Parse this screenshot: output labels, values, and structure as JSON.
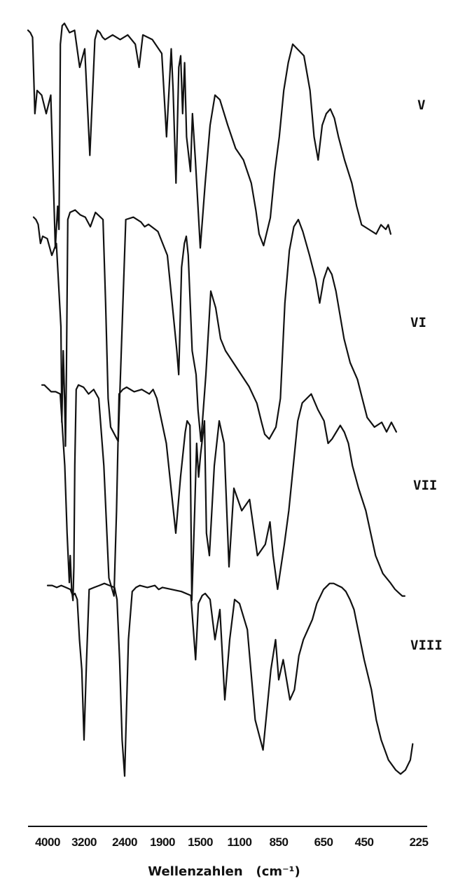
{
  "chart_data": {
    "type": "line",
    "title": "",
    "xlabel": "Wellenzahlen   (cm⁻¹)",
    "ylabel": "",
    "x_axis": {
      "unit": "cm-1",
      "reversed": true,
      "scale": "piecewise (scale changes at 2400 and 1900 cm-1)",
      "ticks": [
        4000,
        3200,
        2400,
        1900,
        1500,
        1100,
        850,
        650,
        450,
        225
      ],
      "tick_labels": [
        "4000",
        "3200",
        "2400",
        "1900",
        "1500",
        "1100",
        "850",
        "650",
        "450",
        "225"
      ]
    },
    "y_axis": {
      "shown": false,
      "note": "transmittance, curves vertically offset"
    },
    "grid": false,
    "legend": "none",
    "series": [
      {
        "name": "V",
        "x": [
          4000,
          3950,
          3900,
          3850,
          3800,
          3700,
          3600,
          3500,
          3400,
          3350,
          3320,
          3300,
          3290,
          3250,
          3200,
          3100,
          3000,
          2900,
          2800,
          2700,
          2600,
          2550,
          2500,
          2450,
          2400,
          2300,
          2200,
          2100,
          2000,
          1950,
          1900,
          1800,
          1700,
          1650,
          1600,
          1580,
          1550,
          1520,
          1500,
          1480,
          1460,
          1440,
          1400,
          1380,
          1350,
          1300,
          1250,
          1200,
          1150,
          1100,
          1050,
          1000,
          950,
          900,
          870,
          850,
          830,
          800,
          780,
          760,
          740,
          720,
          700,
          680,
          650,
          620,
          600,
          580,
          560,
          540,
          520,
          500,
          480,
          450,
          420,
          400,
          380,
          350,
          320,
          300,
          280,
          270,
          260
        ],
        "y": [
          96,
          95,
          93,
          60,
          70,
          68,
          60,
          68,
          2,
          20,
          10,
          55,
          90,
          98,
          99,
          95,
          96,
          80,
          88,
          42,
          92,
          96,
          95,
          93,
          92,
          94,
          92,
          94,
          90,
          80,
          94,
          92,
          86,
          50,
          88,
          70,
          30,
          80,
          85,
          60,
          82,
          50,
          35,
          60,
          40,
          2,
          30,
          55,
          68,
          66,
          55,
          45,
          40,
          30,
          18,
          8,
          3,
          15,
          35,
          50,
          70,
          82,
          90,
          88,
          85,
          70,
          50,
          40,
          55,
          60,
          62,
          58,
          50,
          40,
          30,
          20,
          12,
          10,
          8,
          12,
          10,
          12,
          8
        ]
      },
      {
        "name": "VI",
        "x": [
          4000,
          3950,
          3900,
          3850,
          3800,
          3700,
          3600,
          3500,
          3400,
          3380,
          3350,
          3320,
          3300,
          3280,
          3250,
          3200,
          3100,
          3000,
          2900,
          2800,
          2700,
          2600,
          2550,
          2500,
          2450,
          2400,
          2300,
          2200,
          2100,
          2000,
          1950,
          1900,
          1800,
          1700,
          1650,
          1600,
          1580,
          1550,
          1520,
          1500,
          1480,
          1460,
          1440,
          1400,
          1380,
          1350,
          1300,
          1250,
          1200,
          1150,
          1100,
          1050,
          1000,
          950,
          900,
          870,
          850,
          830,
          800,
          780,
          760,
          740,
          720,
          700,
          680,
          650,
          620,
          600,
          580,
          560,
          540,
          520,
          500,
          480,
          450,
          420,
          400,
          380,
          350,
          320,
          300,
          280,
          270,
          260
        ],
        "y": [
          96,
          95,
          93,
          85,
          88,
          87,
          80,
          85,
          50,
          10,
          40,
          20,
          0,
          30,
          95,
          98,
          99,
          97,
          96,
          92,
          98,
          96,
          95,
          60,
          20,
          8,
          2,
          95,
          96,
          94,
          92,
          93,
          90,
          80,
          60,
          40,
          30,
          75,
          85,
          88,
          80,
          60,
          40,
          30,
          15,
          2,
          30,
          65,
          58,
          45,
          40,
          35,
          30,
          25,
          18,
          10,
          5,
          3,
          8,
          20,
          60,
          82,
          92,
          95,
          90,
          80,
          70,
          60,
          70,
          75,
          72,
          65,
          55,
          45,
          35,
          28,
          20,
          12,
          8,
          10,
          6,
          10,
          8,
          6
        ]
      },
      {
        "name": "VII",
        "x": [
          4000,
          3950,
          3900,
          3850,
          3800,
          3700,
          3600,
          3500,
          3450,
          3400,
          3380,
          3350,
          3320,
          3300,
          3280,
          3250,
          3200,
          3100,
          3000,
          2900,
          2800,
          2700,
          2600,
          2500,
          2450,
          2400,
          2350,
          2300,
          2200,
          2100,
          2000,
          1950,
          1900,
          1800,
          1700,
          1650,
          1600,
          1580,
          1550,
          1530,
          1500,
          1480,
          1460,
          1440,
          1400,
          1380,
          1350,
          1300,
          1250,
          1200,
          1150,
          1100,
          1050,
          1000,
          950,
          900,
          870,
          850,
          830,
          800,
          780,
          760,
          740,
          720,
          700,
          680,
          650,
          620,
          600,
          580,
          560,
          540,
          520,
          500,
          480,
          450,
          420,
          400,
          380,
          350,
          320,
          300,
          280,
          270,
          260
        ],
        "y": [
          96,
          96,
          95,
          94,
          93,
          93,
          92,
          60,
          30,
          8,
          20,
          5,
          0,
          15,
          60,
          94,
          96,
          95,
          92,
          94,
          90,
          60,
          10,
          2,
          40,
          92,
          94,
          95,
          93,
          94,
          92,
          94,
          90,
          70,
          30,
          55,
          75,
          80,
          78,
          0,
          40,
          70,
          55,
          65,
          80,
          30,
          20,
          60,
          80,
          70,
          15,
          50,
          40,
          45,
          20,
          25,
          35,
          20,
          5,
          25,
          40,
          60,
          80,
          88,
          90,
          92,
          85,
          80,
          70,
          72,
          75,
          78,
          75,
          70,
          60,
          50,
          40,
          30,
          20,
          12,
          8,
          5,
          3,
          2,
          2
        ]
      },
      {
        "name": "VIII",
        "x": [
          4000,
          3900,
          3800,
          3700,
          3600,
          3500,
          3450,
          3400,
          3350,
          3300,
          3250,
          3200,
          3150,
          3100,
          3000,
          2900,
          2800,
          2700,
          2600,
          2550,
          2500,
          2450,
          2400,
          2350,
          2300,
          2250,
          2200,
          2100,
          2000,
          1950,
          1900,
          1800,
          1700,
          1600,
          1550,
          1520,
          1500,
          1480,
          1450,
          1400,
          1350,
          1300,
          1250,
          1200,
          1150,
          1100,
          1050,
          1000,
          950,
          900,
          870,
          850,
          830,
          800,
          780,
          760,
          740,
          720,
          700,
          680,
          650,
          620,
          600,
          580,
          560,
          540,
          520,
          500,
          480,
          450,
          420,
          400,
          380,
          350,
          320,
          300,
          280,
          260,
          250
        ],
        "y": [
          97,
          97,
          96,
          97,
          96,
          95,
          92,
          93,
          90,
          70,
          55,
          20,
          60,
          95,
          96,
          97,
          98,
          97,
          96,
          90,
          60,
          20,
          2,
          70,
          94,
          96,
          97,
          96,
          97,
          95,
          96,
          95,
          94,
          92,
          60,
          88,
          90,
          92,
          93,
          90,
          70,
          85,
          40,
          70,
          90,
          88,
          75,
          30,
          15,
          55,
          70,
          50,
          60,
          40,
          45,
          62,
          70,
          75,
          80,
          88,
          95,
          98,
          98,
          97,
          96,
          94,
          90,
          85,
          75,
          60,
          45,
          30,
          20,
          10,
          5,
          3,
          5,
          10,
          18
        ]
      }
    ]
  }
}
